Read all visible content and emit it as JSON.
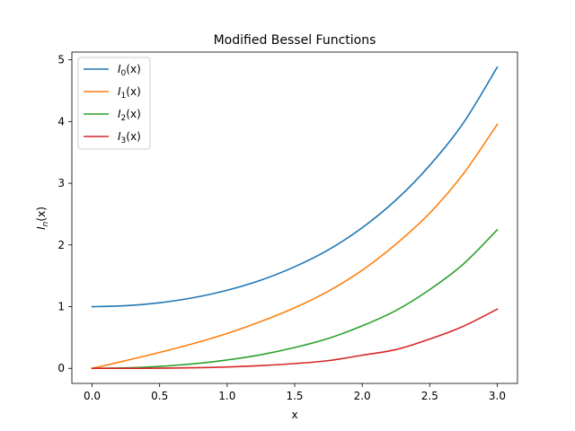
{
  "chart_data": {
    "type": "line",
    "title": "Modified Bessel Functions",
    "xlabel": "x",
    "ylabel_main": "I",
    "ylabel_sub": "n",
    "ylabel_rest": "(x)",
    "xlim": [
      -0.15,
      3.15
    ],
    "ylim": [
      -0.244,
      5.126
    ],
    "xticks": [
      0.0,
      0.5,
      1.0,
      1.5,
      2.0,
      2.5,
      3.0
    ],
    "xtick_labels": [
      "0.0",
      "0.5",
      "1.0",
      "1.5",
      "2.0",
      "2.5",
      "3.0"
    ],
    "yticks": [
      0,
      1,
      2,
      3,
      4,
      5
    ],
    "ytick_labels": [
      "0",
      "1",
      "2",
      "3",
      "4",
      "5"
    ],
    "grid": false,
    "legend_position": "upper-left",
    "x": [
      0.0,
      0.25,
      0.5,
      0.75,
      1.0,
      1.25,
      1.5,
      1.75,
      2.0,
      2.25,
      2.5,
      2.75,
      3.0
    ],
    "series": [
      {
        "name_main": "I",
        "name_sub": "0",
        "name_rest": "(x)",
        "color": "#1f77b4",
        "values": [
          1.0,
          1.0157,
          1.0635,
          1.1456,
          1.2661,
          1.4296,
          1.6467,
          1.9219,
          2.2796,
          2.7286,
          3.2898,
          3.9804,
          4.8808
        ]
      },
      {
        "name_main": "I",
        "name_sub": "1",
        "name_rest": "(x)",
        "color": "#ff7f0e",
        "values": [
          0.0,
          0.126,
          0.2579,
          0.4014,
          0.5652,
          0.7598,
          0.9817,
          1.252,
          1.5906,
          2.014,
          2.5167,
          3.1554,
          3.9534
        ]
      },
      {
        "name_main": "I",
        "name_sub": "2",
        "name_rest": "(x)",
        "color": "#2ca02c",
        "values": [
          0.0,
          0.0078,
          0.0319,
          0.0737,
          0.1357,
          0.2209,
          0.3378,
          0.4852,
          0.6889,
          0.9379,
          1.2765,
          1.6917,
          2.2452
        ]
      },
      {
        "name_main": "I",
        "name_sub": "3",
        "name_rest": "(x)",
        "color": "#d62728",
        "values": [
          0.0,
          0.0003,
          0.0026,
          0.0094,
          0.0222,
          0.0442,
          0.0781,
          0.1255,
          0.2127,
          0.304,
          0.4743,
          0.683,
          0.9598
        ]
      }
    ]
  }
}
